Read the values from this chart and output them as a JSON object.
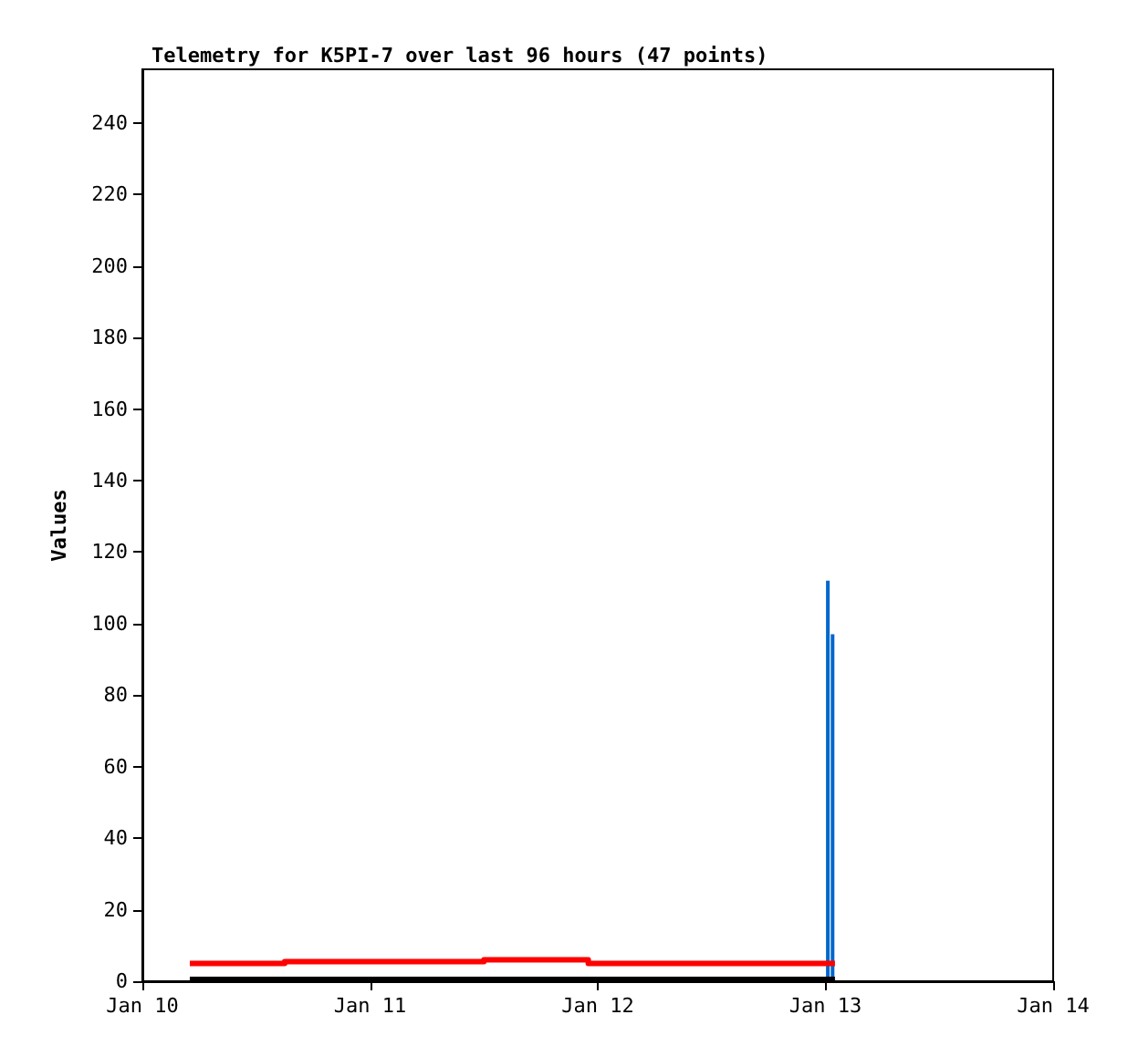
{
  "chart_data": {
    "type": "step",
    "title": "Telemetry for K5PI-7 over last 96 hours (47 points)",
    "ylabel": "Values",
    "xlim": [
      "--01-10",
      "--01-14"
    ],
    "xticks": [
      {
        "value": "--01-10",
        "label": "Jan 10"
      },
      {
        "value": "--01-11",
        "label": "Jan 11"
      },
      {
        "value": "--01-12",
        "label": "Jan 12"
      },
      {
        "value": "--01-13",
        "label": "Jan 13"
      },
      {
        "value": "--01-14",
        "label": "Jan 14"
      }
    ],
    "ylim": [
      0,
      255
    ],
    "yticks": [
      0,
      20,
      40,
      60,
      80,
      100,
      120,
      140,
      160,
      180,
      200,
      220,
      240
    ],
    "grid": false,
    "marker": "none",
    "line_style": "solid",
    "series": [
      {
        "color": "#ff0000",
        "x": [
          "--01-10T05:00",
          "--01-10T15:00",
          "--01-11T12:00",
          "--01-11T23:00",
          "--01-13T01:00"
        ],
        "values": [
          5,
          5.5,
          6,
          5,
          5
        ]
      },
      {
        "color": "#000000",
        "x": [
          "--01-10T05:00",
          "--01-13T01:00"
        ],
        "values": [
          0.5,
          0.5
        ]
      },
      {
        "type": "bar",
        "color": "#0066cc",
        "x": [
          "--01-13T00:15",
          "--01-13T00:45"
        ],
        "values": [
          112,
          97
        ]
      }
    ]
  }
}
